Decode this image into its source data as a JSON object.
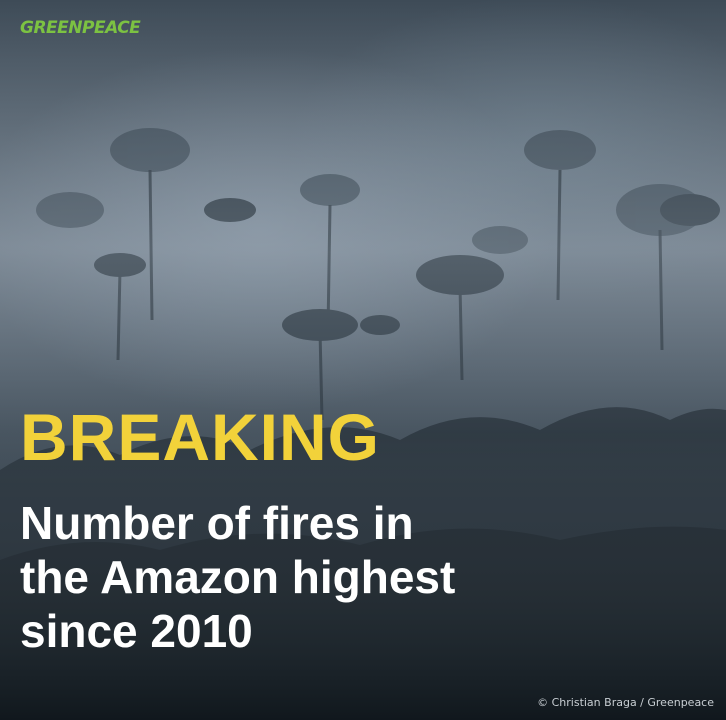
{
  "brand": {
    "logo_text": "GREENPEACE",
    "logo_color": "#7cc242"
  },
  "headline": {
    "kicker": "BREAKING",
    "kicker_color": "#f2d23a",
    "lines": [
      "Number of fires in",
      "the Amazon highest",
      "since 2010"
    ]
  },
  "credit": "© Christian Braga / Greenpeace",
  "photo": {
    "subject": "smoke-covered-rainforest-canopy"
  }
}
